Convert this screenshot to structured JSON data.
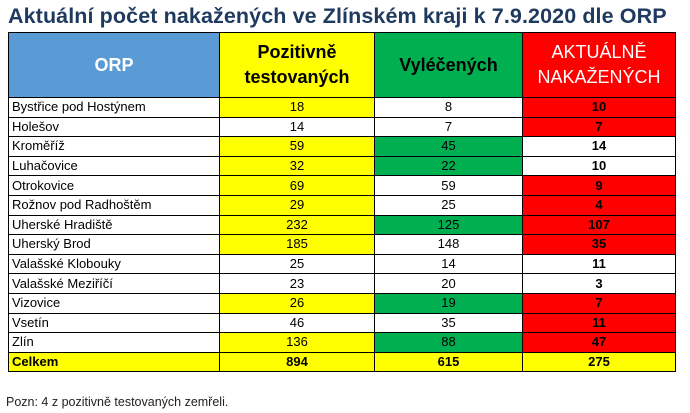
{
  "title": "Aktuální počet nakažených ve Zlínském kraji k 7.9.2020 dle ORP",
  "headers": {
    "orp": "ORP",
    "pozitivne": "Pozitivně testovaných",
    "vylecenych": "Vyléčených",
    "aktualne": "AKTUÁLNĚ NAKAŽENÝCH"
  },
  "colors": {
    "header_orp": "#5b9bd5",
    "yellow": "#ffff00",
    "green": "#00b050",
    "red": "#ff0000",
    "title": "#1f3a5f"
  },
  "rows": [
    {
      "name": "Bystřice pod Hostýnem",
      "pozitivne": "18",
      "vylecenych": "8",
      "aktualne": "10",
      "pc": "y",
      "vc": "w",
      "ac": "r"
    },
    {
      "name": "Holešov",
      "pozitivne": "14",
      "vylecenych": "7",
      "aktualne": "7",
      "pc": "w",
      "vc": "w",
      "ac": "r"
    },
    {
      "name": "Kroměříž",
      "pozitivne": "59",
      "vylecenych": "45",
      "aktualne": "14",
      "pc": "y",
      "vc": "g",
      "ac": "w"
    },
    {
      "name": "Luhačovice",
      "pozitivne": "32",
      "vylecenych": "22",
      "aktualne": "10",
      "pc": "y",
      "vc": "g",
      "ac": "w"
    },
    {
      "name": "Otrokovice",
      "pozitivne": "69",
      "vylecenych": "59",
      "aktualne": "9",
      "pc": "y",
      "vc": "w",
      "ac": "r"
    },
    {
      "name": "Rožnov pod Radhoštěm",
      "pozitivne": "29",
      "vylecenych": "25",
      "aktualne": "4",
      "pc": "y",
      "vc": "w",
      "ac": "r"
    },
    {
      "name": "Uherské Hradiště",
      "pozitivne": "232",
      "vylecenych": "125",
      "aktualne": "107",
      "pc": "y",
      "vc": "g",
      "ac": "r"
    },
    {
      "name": "Uherský Brod",
      "pozitivne": "185",
      "vylecenych": "148",
      "aktualne": "35",
      "pc": "y",
      "vc": "w",
      "ac": "r"
    },
    {
      "name": "Valašské Klobouky",
      "pozitivne": "25",
      "vylecenych": "14",
      "aktualne": "11",
      "pc": "w",
      "vc": "w",
      "ac": "w"
    },
    {
      "name": "Valašské Meziříčí",
      "pozitivne": "23",
      "vylecenych": "20",
      "aktualne": "3",
      "pc": "w",
      "vc": "w",
      "ac": "w"
    },
    {
      "name": "Vizovice",
      "pozitivne": "26",
      "vylecenych": "19",
      "aktualne": "7",
      "pc": "y",
      "vc": "g",
      "ac": "r"
    },
    {
      "name": "Vsetín",
      "pozitivne": "46",
      "vylecenych": "35",
      "aktualne": "11",
      "pc": "w",
      "vc": "w",
      "ac": "r"
    },
    {
      "name": "Zlín",
      "pozitivne": "136",
      "vylecenych": "88",
      "aktualne": "47",
      "pc": "y",
      "vc": "g",
      "ac": "r"
    }
  ],
  "total": {
    "name": "Celkem",
    "pozitivne": "894",
    "vylecenych": "615",
    "aktualne": "275"
  },
  "note": "Pozn: 4 z pozitivně testovaných zemřeli."
}
